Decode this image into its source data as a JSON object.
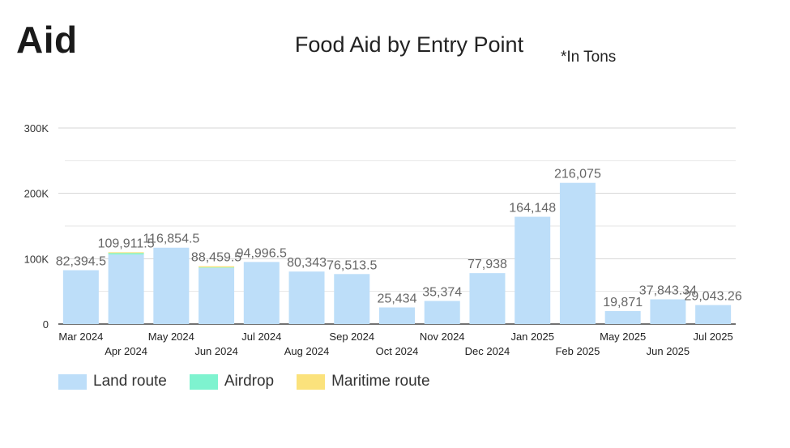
{
  "header": {
    "big_title": "Aid",
    "chart_title": "Food Aid by Entry Point",
    "units_note": "*In Tons"
  },
  "colors": {
    "land": "#bddef9",
    "airdrop": "#7ef3cf",
    "maritime": "#fbe27c"
  },
  "chart_data": {
    "type": "bar",
    "stacked": true,
    "title": "Food Aid by Entry Point",
    "xlabel": "",
    "ylabel": "",
    "ylim": [
      0,
      300000
    ],
    "yticks": [
      "0",
      "100K",
      "200K",
      "300K"
    ],
    "grid": true,
    "legend_position": "bottom-left",
    "categories": [
      "Mar 2024",
      "Apr 2024",
      "May 2024",
      "Jun 2024",
      "Jul 2024",
      "Aug 2024",
      "Sep 2024",
      "Oct 2024",
      "Nov 2024",
      "Dec 2024",
      "Jan 2025",
      "Feb 2025",
      "May 2025",
      "Jun 2025",
      "Jul 2025"
    ],
    "series": [
      {
        "name": "Land route",
        "values": [
          82394.5,
          106400,
          116854.5,
          85900,
          94996.5,
          80343,
          76513.5,
          25434,
          35374,
          77938,
          164148,
          216075,
          19871,
          37843.34,
          29043.26
        ]
      },
      {
        "name": "Airdrop",
        "values": [
          0,
          2200,
          0,
          800,
          0,
          0,
          0,
          0,
          0,
          0,
          0,
          0,
          0,
          0,
          0
        ]
      },
      {
        "name": "Maritime route",
        "values": [
          0,
          1311.5,
          0,
          1759.5,
          0,
          0,
          0,
          0,
          0,
          0,
          0,
          0,
          0,
          0,
          0
        ]
      }
    ],
    "total_labels": [
      "82,394.5",
      "109,911.5",
      "116,854.5",
      "88,459.5",
      "94,996.5",
      "80,343",
      "76,513.5",
      "25,434",
      "35,374",
      "77,938",
      "164,148",
      "216,075",
      "19,871",
      "37,843.34",
      "29,043.26"
    ]
  }
}
